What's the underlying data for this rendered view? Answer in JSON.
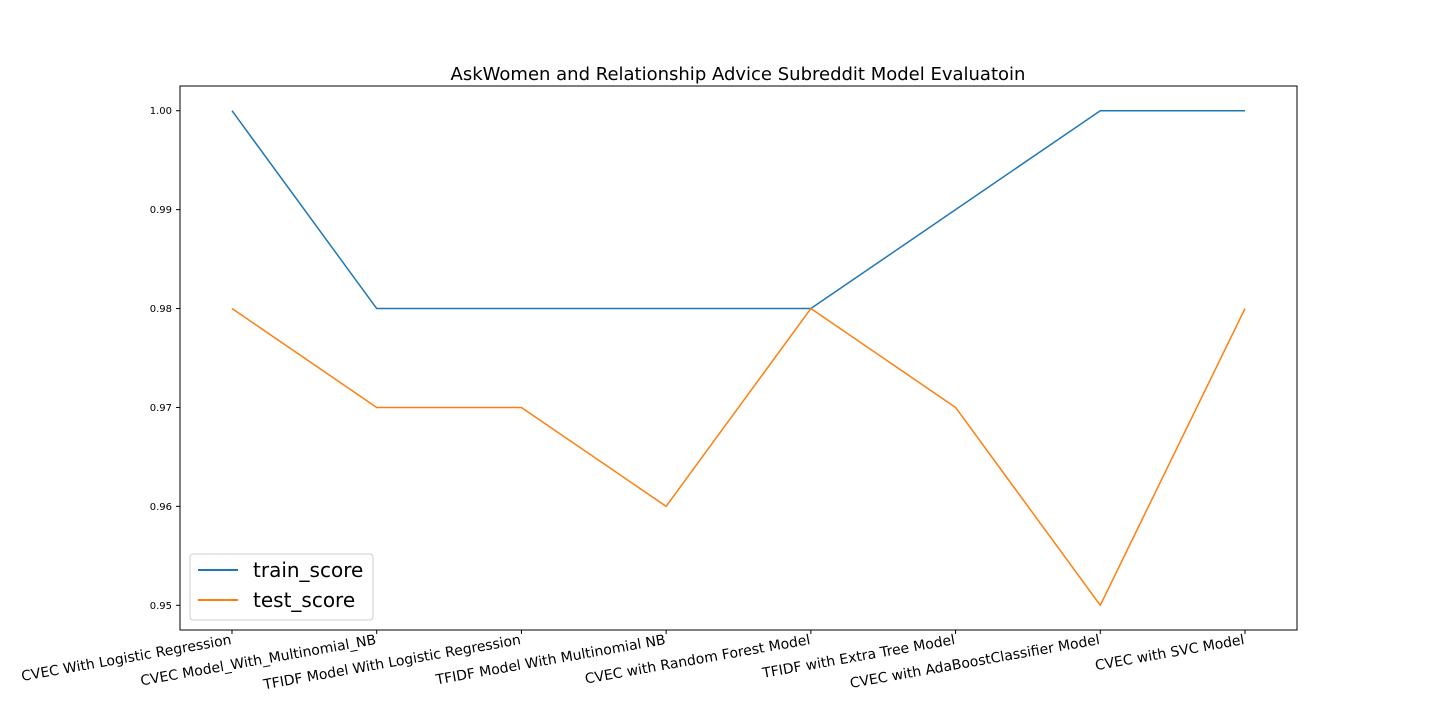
{
  "chart_data": {
    "type": "line",
    "title": "AskWomen and Relationship Advice Subreddit Model Evaluatoin",
    "xlabel": "",
    "ylabel": "",
    "categories": [
      "CVEC With Logistic Regression",
      "CVEC Model_With_Multinomial_NB",
      "TFIDF Model With Logistic Regression",
      "TFIDF Model With Multinomial NB",
      "CVEC with Random Forest Model",
      "TFIDF with Extra Tree Model",
      "CVEC with AdaBoostClassifier Model",
      "CVEC with SVC Model"
    ],
    "series": [
      {
        "name": "train_score",
        "color": "#1f77b4",
        "values": [
          1.0,
          0.98,
          0.98,
          0.98,
          0.98,
          0.99,
          1.0,
          1.0
        ]
      },
      {
        "name": "test_score",
        "color": "#ff7f0e",
        "values": [
          0.98,
          0.97,
          0.97,
          0.96,
          0.98,
          0.97,
          0.95,
          0.98
        ]
      }
    ],
    "yticks": [
      "0.95",
      "0.96",
      "0.97",
      "0.98",
      "0.99",
      "1.00"
    ],
    "ylim": [
      0.9475,
      1.0025
    ],
    "grid": false,
    "legend_position": "lower-left"
  }
}
